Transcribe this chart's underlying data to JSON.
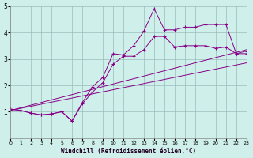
{
  "xlabel": "Windchill (Refroidissement éolien,°C)",
  "background_color": "#cff0ea",
  "line_color": "#880088",
  "xlim": [
    0,
    23
  ],
  "ylim": [
    0,
    5
  ],
  "xticks": [
    0,
    1,
    2,
    3,
    4,
    5,
    6,
    7,
    8,
    9,
    10,
    11,
    12,
    13,
    14,
    15,
    16,
    17,
    18,
    19,
    20,
    21,
    22,
    23
  ],
  "yticks": [
    1,
    2,
    3,
    4,
    5
  ],
  "grid_color": "#99bbbb",
  "series": [
    {
      "x": [
        0,
        1,
        2,
        3,
        4,
        5,
        6,
        7,
        8,
        9,
        10,
        11,
        12,
        13,
        14,
        15,
        16,
        17,
        18,
        19,
        20,
        21,
        22,
        23
      ],
      "y": [
        1.1,
        1.05,
        0.95,
        0.88,
        0.92,
        1.0,
        0.65,
        1.35,
        1.95,
        2.3,
        3.2,
        3.15,
        3.5,
        4.05,
        4.9,
        4.1,
        4.1,
        4.2,
        4.2,
        4.3,
        4.3,
        4.3,
        3.2,
        3.3
      ],
      "marker": "+"
    },
    {
      "x": [
        0,
        1,
        2,
        3,
        4,
        5,
        6,
        7,
        8,
        9,
        10,
        11,
        12,
        13,
        14,
        15,
        16,
        17,
        18,
        19,
        20,
        21,
        22,
        23
      ],
      "y": [
        1.1,
        1.05,
        0.95,
        0.88,
        0.92,
        1.0,
        0.65,
        1.3,
        1.75,
        2.1,
        2.8,
        3.1,
        3.1,
        3.35,
        3.85,
        3.85,
        3.45,
        3.5,
        3.5,
        3.5,
        3.4,
        3.45,
        3.2,
        3.2
      ],
      "marker": "+"
    },
    {
      "x": [
        0,
        23
      ],
      "y": [
        1.05,
        3.35
      ],
      "marker": null
    },
    {
      "x": [
        0,
        23
      ],
      "y": [
        1.05,
        2.85
      ],
      "marker": null
    }
  ]
}
